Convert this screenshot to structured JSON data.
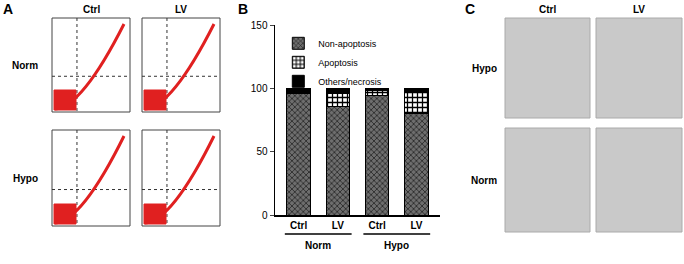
{
  "panel_a": {
    "label": "A",
    "columns": [
      "Ctrl",
      "LV"
    ],
    "rows": [
      "Norm",
      "Hypo"
    ]
  },
  "panel_b": {
    "label": "B"
  },
  "chart_data": {
    "type": "bar",
    "stacked": true,
    "categories": [
      "Ctrl",
      "LV",
      "Ctrl",
      "LV"
    ],
    "groups": [
      "Norm",
      "Norm",
      "Hypo",
      "Hypo"
    ],
    "series": [
      {
        "name": "Non-apoptosis",
        "color": "#6e6e6e",
        "values": [
          96,
          86,
          94,
          80
        ]
      },
      {
        "name": "Apoptosis",
        "color": "#ffffff",
        "values": [
          1,
          10,
          4,
          17
        ]
      },
      {
        "name": "Others/necrosis",
        "color": "#000000",
        "values": [
          3,
          4,
          2,
          3
        ]
      }
    ],
    "ylim": [
      0,
      150
    ],
    "yticks": [
      0,
      50,
      100,
      150
    ],
    "legend": "upper left",
    "grid": false
  },
  "panel_c": {
    "label": "C",
    "columns": [
      "Ctrl",
      "LV"
    ],
    "rows": [
      "Hypo",
      "Norm"
    ]
  }
}
